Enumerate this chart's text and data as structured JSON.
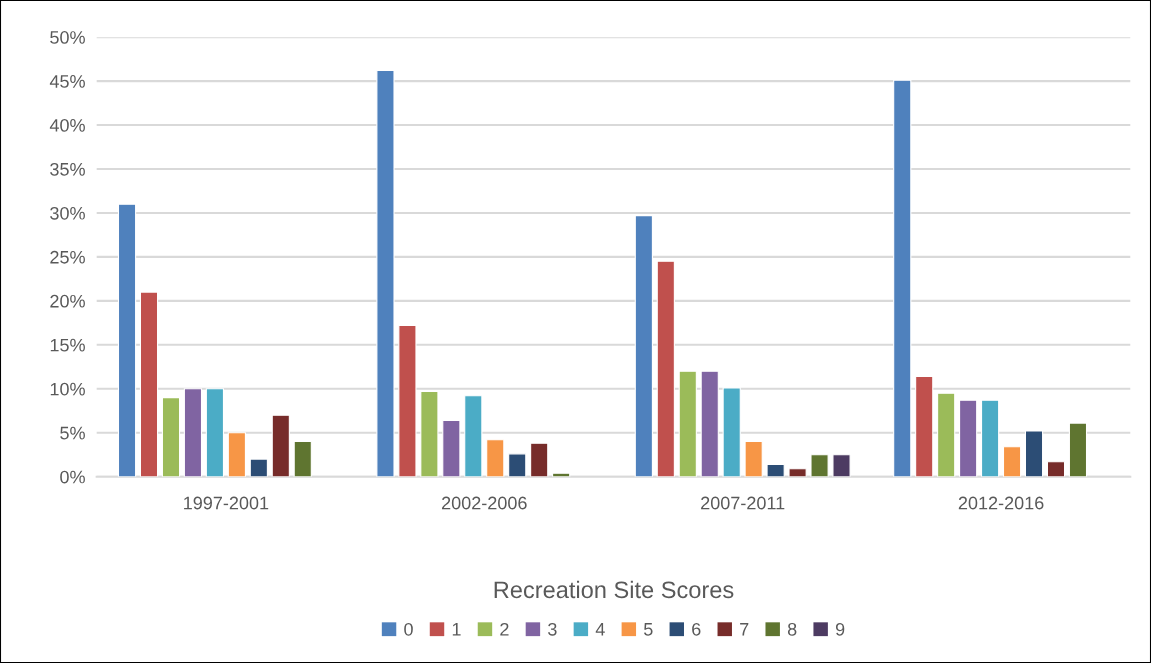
{
  "chart_data": {
    "type": "bar",
    "categories": [
      "1997-2001",
      "2002-2006",
      "2007-2011",
      "2012-2016"
    ],
    "legend_title": "Recreation Site Scores",
    "legend": "bottom",
    "grid": "y",
    "ylim": [
      0,
      50
    ],
    "yticks": [
      {
        "value": 0,
        "label": "0%"
      },
      {
        "value": 5,
        "label": "5%"
      },
      {
        "value": 10,
        "label": "10%"
      },
      {
        "value": 15,
        "label": "15%"
      },
      {
        "value": 20,
        "label": "20%"
      },
      {
        "value": 25,
        "label": "25%"
      },
      {
        "value": 30,
        "label": "30%"
      },
      {
        "value": 35,
        "label": "35%"
      },
      {
        "value": 40,
        "label": "40%"
      },
      {
        "value": 45,
        "label": "45%"
      },
      {
        "value": 50,
        "label": "50%"
      }
    ],
    "series": [
      {
        "name": "0",
        "color": "#4f81bd",
        "values": [
          31.0,
          46.2,
          29.7,
          45.1
        ]
      },
      {
        "name": "1",
        "color": "#c0504d",
        "values": [
          21.0,
          17.2,
          24.5,
          11.4
        ]
      },
      {
        "name": "2",
        "color": "#9bbb59",
        "values": [
          9.0,
          9.7,
          12.0,
          9.5
        ]
      },
      {
        "name": "3",
        "color": "#8064a2",
        "values": [
          10.0,
          6.4,
          12.0,
          8.7
        ]
      },
      {
        "name": "4",
        "color": "#4bacc6",
        "values": [
          10.0,
          9.2,
          10.1,
          8.7
        ]
      },
      {
        "name": "5",
        "color": "#f79646",
        "values": [
          5.0,
          4.2,
          4.0,
          3.4
        ]
      },
      {
        "name": "6",
        "color": "#2c4d75",
        "values": [
          2.0,
          2.6,
          1.4,
          5.2
        ]
      },
      {
        "name": "7",
        "color": "#772c2a",
        "values": [
          7.0,
          3.8,
          0.9,
          1.7
        ]
      },
      {
        "name": "8",
        "color": "#5f7530",
        "values": [
          4.0,
          0.4,
          2.5,
          6.1
        ]
      },
      {
        "name": "9",
        "color": "#4d3b62",
        "values": [
          null,
          null,
          2.5,
          null
        ]
      }
    ]
  }
}
